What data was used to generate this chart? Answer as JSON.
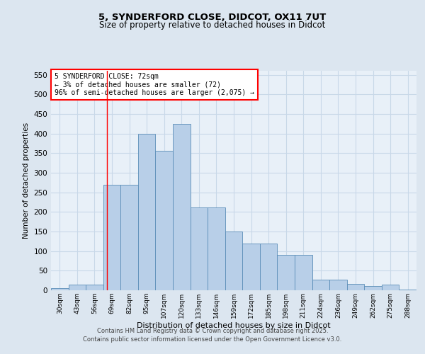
{
  "title1": "5, SYNDERFORD CLOSE, DIDCOT, OX11 7UT",
  "title2": "Size of property relative to detached houses in Didcot",
  "xlabel": "Distribution of detached houses by size in Didcot",
  "ylabel": "Number of detached properties",
  "categories": [
    "30sqm",
    "43sqm",
    "56sqm",
    "69sqm",
    "82sqm",
    "95sqm",
    "107sqm",
    "120sqm",
    "133sqm",
    "146sqm",
    "159sqm",
    "172sqm",
    "185sqm",
    "198sqm",
    "211sqm",
    "224sqm",
    "236sqm",
    "249sqm",
    "262sqm",
    "275sqm",
    "288sqm"
  ],
  "values": [
    5,
    15,
    15,
    270,
    270,
    400,
    355,
    425,
    212,
    212,
    150,
    120,
    120,
    90,
    90,
    28,
    28,
    17,
    10,
    15,
    2
  ],
  "bar_color": "#b8cfe8",
  "bar_edge_color": "#5b8db8",
  "vline_color": "red",
  "annotation_text": "5 SYNDERFORD CLOSE: 72sqm\n← 3% of detached houses are smaller (72)\n96% of semi-detached houses are larger (2,075) →",
  "annotation_box_color": "white",
  "annotation_box_edge": "red",
  "bg_color": "#dce6f0",
  "plot_bg_color": "#e8f0f8",
  "grid_color": "#c8d8e8",
  "ylim": [
    0,
    560
  ],
  "yticks": [
    0,
    50,
    100,
    150,
    200,
    250,
    300,
    350,
    400,
    450,
    500,
    550
  ],
  "footer1": "Contains HM Land Registry data © Crown copyright and database right 2025.",
  "footer2": "Contains public sector information licensed under the Open Government Licence v3.0."
}
